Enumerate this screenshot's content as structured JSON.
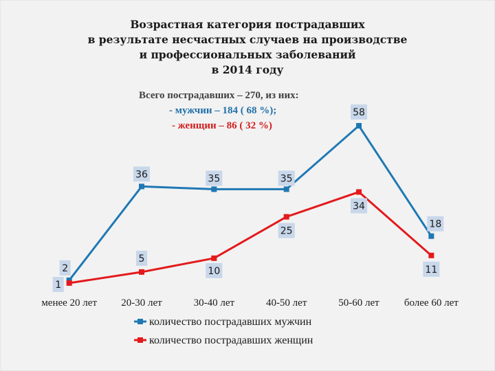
{
  "slide": {
    "title_lines": [
      "Возрастная категория пострадавших",
      "в результате несчастных случаев на производстве",
      "и профессиональных заболеваний",
      "в 2014 году"
    ],
    "summary": {
      "total": "Всего пострадавших – 270, из них:",
      "men": "- мужчин – 184 ( 68 %);",
      "women": "- женщин – 86 ( 32 %)"
    }
  },
  "colors": {
    "men": "#1f78b4",
    "women": "#e31a1c",
    "label_bg": "#c8d7ea"
  },
  "chart_data": {
    "type": "line",
    "title": "Возрастная категория пострадавших в результате несчастных случаев на производстве и профессиональных заболеваний в 2014 году",
    "categories": [
      "менее 20 лет",
      "20-30 лет",
      "30-40 лет",
      "40-50 лет",
      "50-60 лет",
      "более 60 лет"
    ],
    "series": [
      {
        "name": "количество пострадавших мужчин",
        "values": [
          2,
          36,
          35,
          35,
          58,
          18
        ]
      },
      {
        "name": "количество пострадавших женщин",
        "values": [
          1,
          5,
          10,
          25,
          34,
          11
        ]
      }
    ],
    "ylim": [
      0,
      60
    ],
    "grid": false,
    "legend": "bottom"
  }
}
